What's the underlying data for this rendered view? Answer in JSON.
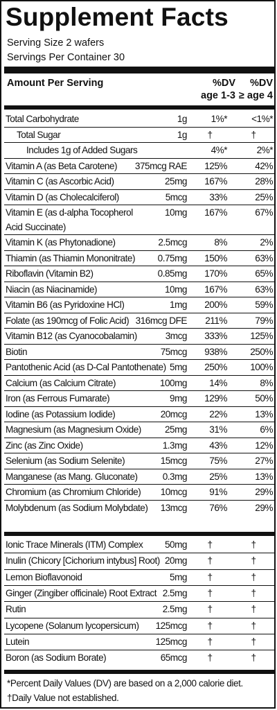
{
  "title": "Supplement Facts",
  "serving_size": "Serving Size 2 wafers",
  "servings_per_container": "Servings Per Container 30",
  "header": {
    "amount_per_serving": "Amount Per Serving",
    "dv_col1_line1": "%DV",
    "dv_col1_line2": "age 1-3",
    "dv_col2_line1": "%DV",
    "dv_col2_line2": "≥ age 4"
  },
  "group1": [
    {
      "name": "Total Carbohydrate",
      "amount": "1g",
      "dv1": "1%*",
      "dv2": "<1%*",
      "indent": 0
    },
    {
      "name": "Total Sugar",
      "amount": "1g",
      "dv1": "†",
      "dv2": "†",
      "indent": 1
    },
    {
      "name": "Includes 1g of Added Sugars",
      "amount": "",
      "dv1": "4%*",
      "dv2": "2%*",
      "indent": 2
    },
    {
      "name": "Vitamin A (as Beta Carotene)",
      "amount": "375mcg RAE",
      "dv1": "125%",
      "dv2": "42%",
      "indent": 0
    },
    {
      "name": "Vitamin C (as Ascorbic Acid)",
      "amount": "25mg",
      "dv1": "167%",
      "dv2": "28%",
      "indent": 0
    },
    {
      "name": "Vitamin D (as Cholecalciferol)",
      "amount": "5mcg",
      "dv1": "33%",
      "dv2": "25%",
      "indent": 0
    },
    {
      "name": "Vitamin E (as d-alpha Tocopherol",
      "name2": "Acid Succinate)",
      "amount": "10mg",
      "dv1": "167%",
      "dv2": "67%",
      "indent": 0
    },
    {
      "name": "Vitamin K (as Phytonadione)",
      "amount": "2.5mcg",
      "dv1": "8%",
      "dv2": "2%",
      "indent": 0
    },
    {
      "name": "Thiamin (as Thiamin Mononitrate)",
      "amount": "0.75mg",
      "dv1": "150%",
      "dv2": "63%",
      "indent": 0
    },
    {
      "name": "Riboflavin (Vitamin B2)",
      "amount": "0.85mg",
      "dv1": "170%",
      "dv2": "65%",
      "indent": 0
    },
    {
      "name": "Niacin (as Niacinamide)",
      "amount": "10mg",
      "dv1": "167%",
      "dv2": "63%",
      "indent": 0
    },
    {
      "name": "Vitamin B6 (as Pyridoxine HCl)",
      "amount": "1mg",
      "dv1": "200%",
      "dv2": "59%",
      "indent": 0
    },
    {
      "name": "Folate (as 190mcg of Folic Acid)",
      "amount": "316mcg DFE",
      "dv1": "211%",
      "dv2": "79%",
      "indent": 0
    },
    {
      "name": "Vitamin B12 (as Cyanocobalamin)",
      "amount": "3mcg",
      "dv1": "333%",
      "dv2": "125%",
      "indent": 0
    },
    {
      "name": "Biotin",
      "amount": "75mcg",
      "dv1": "938%",
      "dv2": "250%",
      "indent": 0
    },
    {
      "name": "Pantothenic Acid (as D-Cal Pantothenate)",
      "amount": "5mg",
      "dv1": "250%",
      "dv2": "100%",
      "indent": 0
    },
    {
      "name": "Calcium (as Calcium Citrate)",
      "amount": "100mg",
      "dv1": "14%",
      "dv2": "8%",
      "indent": 0
    },
    {
      "name": "Iron (as Ferrous Fumarate)",
      "amount": "9mg",
      "dv1": "129%",
      "dv2": "50%",
      "indent": 0
    },
    {
      "name": "Iodine (as Potassium Iodide)",
      "amount": "20mcg",
      "dv1": "22%",
      "dv2": "13%",
      "indent": 0
    },
    {
      "name": "Magnesium (as Magnesium Oxide)",
      "amount": "25mg",
      "dv1": "31%",
      "dv2": "6%",
      "indent": 0
    },
    {
      "name": "Zinc (as Zinc Oxide)",
      "amount": "1.3mg",
      "dv1": "43%",
      "dv2": "12%",
      "indent": 0
    },
    {
      "name": "Selenium (as Sodium Selenite)",
      "amount": "15mcg",
      "dv1": "75%",
      "dv2": "27%",
      "indent": 0
    },
    {
      "name": "Manganese (as Mang. Gluconate)",
      "amount": "0.3mg",
      "dv1": "25%",
      "dv2": "13%",
      "indent": 0
    },
    {
      "name": "Chromium (as Chromium Chloride)",
      "amount": "10mcg",
      "dv1": "91%",
      "dv2": "29%",
      "indent": 0
    },
    {
      "name": "Molybdenum (as Sodium Molybdate)",
      "amount": "13mcg",
      "dv1": "76%",
      "dv2": "29%",
      "indent": 0
    }
  ],
  "group2": [
    {
      "name": "Ionic Trace Minerals (ITM) Complex",
      "amount": "50mg",
      "dv1": "†",
      "dv2": "†"
    },
    {
      "name": "Inulin (Chicory [Cichorium intybus] Root)",
      "amount": "20mg",
      "dv1": "†",
      "dv2": "†"
    },
    {
      "name": "Lemon Bioflavonoid",
      "amount": "5mg",
      "dv1": "†",
      "dv2": "†"
    },
    {
      "name": "Ginger (Zingiber officinale) Root Extract",
      "amount": "2.5mg",
      "dv1": "†",
      "dv2": "†"
    },
    {
      "name": "Rutin",
      "amount": "2.5mg",
      "dv1": "†",
      "dv2": "†"
    },
    {
      "name": "Lycopene (Solanum lycopersicum)",
      "amount": "125mcg",
      "dv1": "†",
      "dv2": "†"
    },
    {
      "name": "Lutein",
      "amount": "125mcg",
      "dv1": "†",
      "dv2": "†"
    },
    {
      "name": "Boron (as Sodium Borate)",
      "amount": "65mcg",
      "dv1": "†",
      "dv2": "†"
    }
  ],
  "footnote1": "*Percent Daily Values (DV) are based on a 2,000 calorie diet.",
  "footnote2": "†Daily Value not established."
}
